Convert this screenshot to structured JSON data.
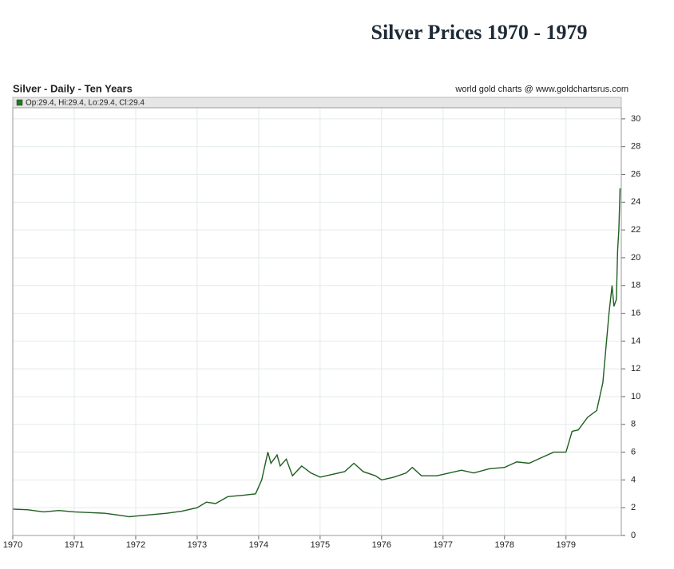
{
  "chart_data": {
    "type": "line",
    "title": "Silver Prices 1970 - 1979",
    "subtitle": "Silver - Daily - Ten Years",
    "source": "world gold charts @ www.goldchartsrus.com",
    "legend_text": "Op:29.4, Hi:29.4, Lo:29.4, Cl:29.4",
    "x": [
      1970.0,
      1970.25,
      1970.5,
      1970.75,
      1971.0,
      1971.25,
      1971.5,
      1971.75,
      1971.9,
      1972.0,
      1972.25,
      1972.5,
      1972.75,
      1973.0,
      1973.15,
      1973.3,
      1973.5,
      1973.75,
      1973.95,
      1974.05,
      1974.15,
      1974.2,
      1974.3,
      1974.35,
      1974.45,
      1974.55,
      1974.7,
      1974.85,
      1975.0,
      1975.2,
      1975.4,
      1975.55,
      1975.7,
      1975.9,
      1976.0,
      1976.2,
      1976.4,
      1976.5,
      1976.65,
      1976.9,
      1977.0,
      1977.3,
      1977.5,
      1977.75,
      1978.0,
      1978.2,
      1978.4,
      1978.6,
      1978.8,
      1979.0,
      1979.1,
      1979.2,
      1979.35,
      1979.5,
      1979.6,
      1979.7,
      1979.75,
      1979.78,
      1979.82,
      1979.84,
      1979.86,
      1979.88
    ],
    "series": [
      {
        "name": "Silver",
        "color": "#1f5e1f",
        "values": [
          1.9,
          1.85,
          1.7,
          1.8,
          1.7,
          1.65,
          1.6,
          1.45,
          1.35,
          1.4,
          1.5,
          1.6,
          1.75,
          2.0,
          2.4,
          2.3,
          2.8,
          2.9,
          3.0,
          4.0,
          6.0,
          5.2,
          5.8,
          5.0,
          5.5,
          4.3,
          5.0,
          4.5,
          4.2,
          4.4,
          4.6,
          5.2,
          4.6,
          4.3,
          4.0,
          4.2,
          4.5,
          4.9,
          4.3,
          4.3,
          4.4,
          4.7,
          4.5,
          4.8,
          4.9,
          5.3,
          5.2,
          5.6,
          6.0,
          6.0,
          7.5,
          7.6,
          8.5,
          9.0,
          11.0,
          16.0,
          18.0,
          16.5,
          17.0,
          20.5,
          22.0,
          25.0
        ]
      }
    ],
    "xlim": [
      1970,
      1979.9
    ],
    "xticks": [
      1970,
      1971,
      1972,
      1973,
      1974,
      1975,
      1976,
      1977,
      1978,
      1979
    ],
    "ylim": [
      0,
      30.8
    ],
    "yticks": [
      0,
      2,
      4,
      6,
      8,
      10,
      12,
      14,
      16,
      18,
      20,
      22,
      24,
      26,
      28,
      30
    ],
    "grid": true
  }
}
